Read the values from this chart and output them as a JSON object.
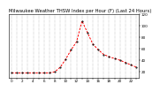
{
  "title": "Milwaukee Weather THSW Index per Hour (F) (Last 24 Hours)",
  "x": [
    0,
    1,
    2,
    3,
    4,
    5,
    6,
    7,
    8,
    9,
    10,
    11,
    12,
    13,
    14,
    15,
    16,
    17,
    18,
    19,
    20,
    21,
    22,
    23
  ],
  "y": [
    18,
    18,
    18,
    18,
    18,
    18,
    18,
    18,
    20,
    28,
    42,
    58,
    72,
    108,
    88,
    68,
    58,
    50,
    46,
    43,
    40,
    36,
    32,
    28
  ],
  "ylim": [
    10,
    120
  ],
  "xlim": [
    -0.5,
    23.5
  ],
  "yticks": [
    20,
    40,
    60,
    80,
    100,
    120
  ],
  "xtick_positions": [
    0,
    2,
    4,
    6,
    8,
    10,
    12,
    14,
    16,
    18,
    20,
    22
  ],
  "xtick_all": [
    0,
    1,
    2,
    3,
    4,
    5,
    6,
    7,
    8,
    9,
    10,
    11,
    12,
    13,
    14,
    15,
    16,
    17,
    18,
    19,
    20,
    21,
    22,
    23
  ],
  "line_color": "#ff0000",
  "marker_color": "#000000",
  "bg_color": "#ffffff",
  "grid_color": "#888888",
  "title_color": "#000000",
  "title_fontsize": 3.8,
  "tick_fontsize": 3.0
}
